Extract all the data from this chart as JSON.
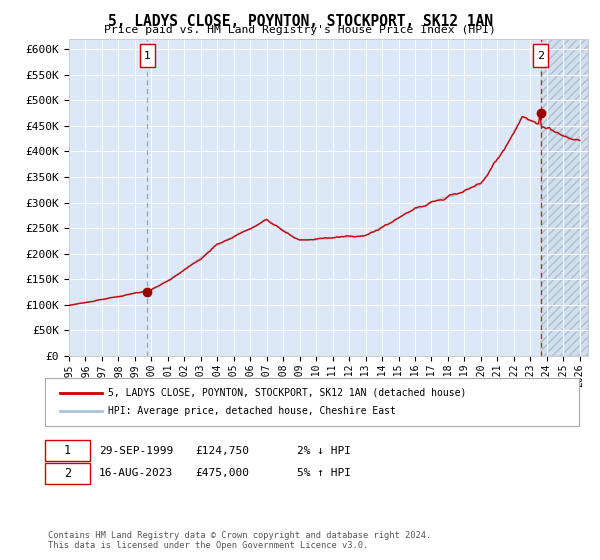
{
  "title": "5, LADYS CLOSE, POYNTON, STOCKPORT, SK12 1AN",
  "subtitle": "Price paid vs. HM Land Registry's House Price Index (HPI)",
  "legend_line1": "5, LADYS CLOSE, POYNTON, STOCKPORT, SK12 1AN (detached house)",
  "legend_line2": "HPI: Average price, detached house, Cheshire East",
  "footnote": "Contains HM Land Registry data © Crown copyright and database right 2024.\nThis data is licensed under the Open Government Licence v3.0.",
  "sale1_label": "1",
  "sale1_date": "29-SEP-1999",
  "sale1_price": "£124,750",
  "sale1_hpi": "2% ↓ HPI",
  "sale2_label": "2",
  "sale2_date": "16-AUG-2023",
  "sale2_price": "£475,000",
  "sale2_hpi": "5% ↑ HPI",
  "sale1_x": 1999.75,
  "sale1_y": 124750,
  "sale2_x": 2023.62,
  "sale2_y": 475000,
  "hpi_line_color": "#aac4e0",
  "price_line_color": "#cc0000",
  "dot_color": "#990000",
  "plot_bg": "#dce8f8",
  "vline1_color": "#999999",
  "vline2_color": "#cc0000",
  "ylim": [
    0,
    620000
  ],
  "xlim_start": 1995.0,
  "xlim_end": 2026.5,
  "yticks": [
    0,
    50000,
    100000,
    150000,
    200000,
    250000,
    300000,
    350000,
    400000,
    450000,
    500000,
    550000,
    600000
  ],
  "ytick_labels": [
    "£0",
    "£50K",
    "£100K",
    "£150K",
    "£200K",
    "£250K",
    "£300K",
    "£350K",
    "£400K",
    "£450K",
    "£500K",
    "£550K",
    "£600K"
  ],
  "xticks": [
    1995,
    1996,
    1997,
    1998,
    1999,
    2000,
    2001,
    2002,
    2003,
    2004,
    2005,
    2006,
    2007,
    2008,
    2009,
    2010,
    2011,
    2012,
    2013,
    2014,
    2015,
    2016,
    2017,
    2018,
    2019,
    2020,
    2021,
    2022,
    2023,
    2024,
    2025,
    2026
  ]
}
